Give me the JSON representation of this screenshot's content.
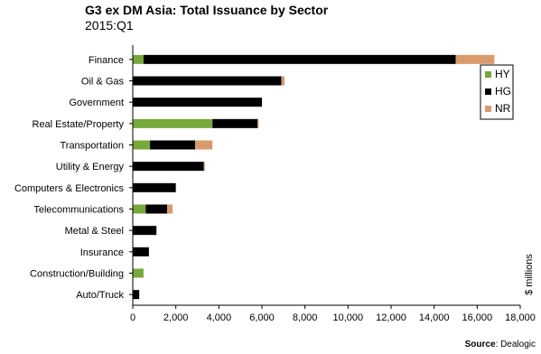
{
  "title": "G3 ex DM Asia:  Total Issuance by Sector",
  "subtitle": "2015:Q1",
  "source": {
    "label": "Source",
    "text": ": Dealogic"
  },
  "chart_data": {
    "type": "bar",
    "orientation": "horizontal",
    "stacked": true,
    "categories": [
      "Finance",
      "Oil & Gas",
      "Government",
      "Real Estate/Property",
      "Transportation",
      "Utility & Energy",
      "Computers & Electronics",
      "Telecommunications",
      "Metal & Steel",
      "Insurance",
      "Construction/Building",
      "Auto/Truck"
    ],
    "series": [
      {
        "name": "HY",
        "color": "#77a83a",
        "values": [
          500,
          0,
          0,
          3700,
          800,
          0,
          0,
          600,
          0,
          0,
          500,
          0
        ]
      },
      {
        "name": "HG",
        "color": "#000000",
        "values": [
          14500,
          6900,
          6000,
          2100,
          2100,
          3300,
          2000,
          1000,
          1100,
          750,
          0,
          300
        ]
      },
      {
        "name": "NR",
        "color": "#d99a6c",
        "values": [
          1800,
          150,
          0,
          50,
          800,
          50,
          0,
          250,
          0,
          0,
          0,
          0
        ]
      }
    ],
    "xlim": [
      0,
      18000
    ],
    "xticks": [
      0,
      2000,
      4000,
      6000,
      8000,
      10000,
      12000,
      14000,
      16000,
      18000
    ],
    "xtick_labels": [
      "0",
      "2,000",
      "4,000",
      "6,000",
      "8,000",
      "10,000",
      "12,000",
      "14,000",
      "16,000",
      "18,000"
    ],
    "ylabel": "$ millions",
    "grid": false,
    "legend_position": "top-right"
  }
}
